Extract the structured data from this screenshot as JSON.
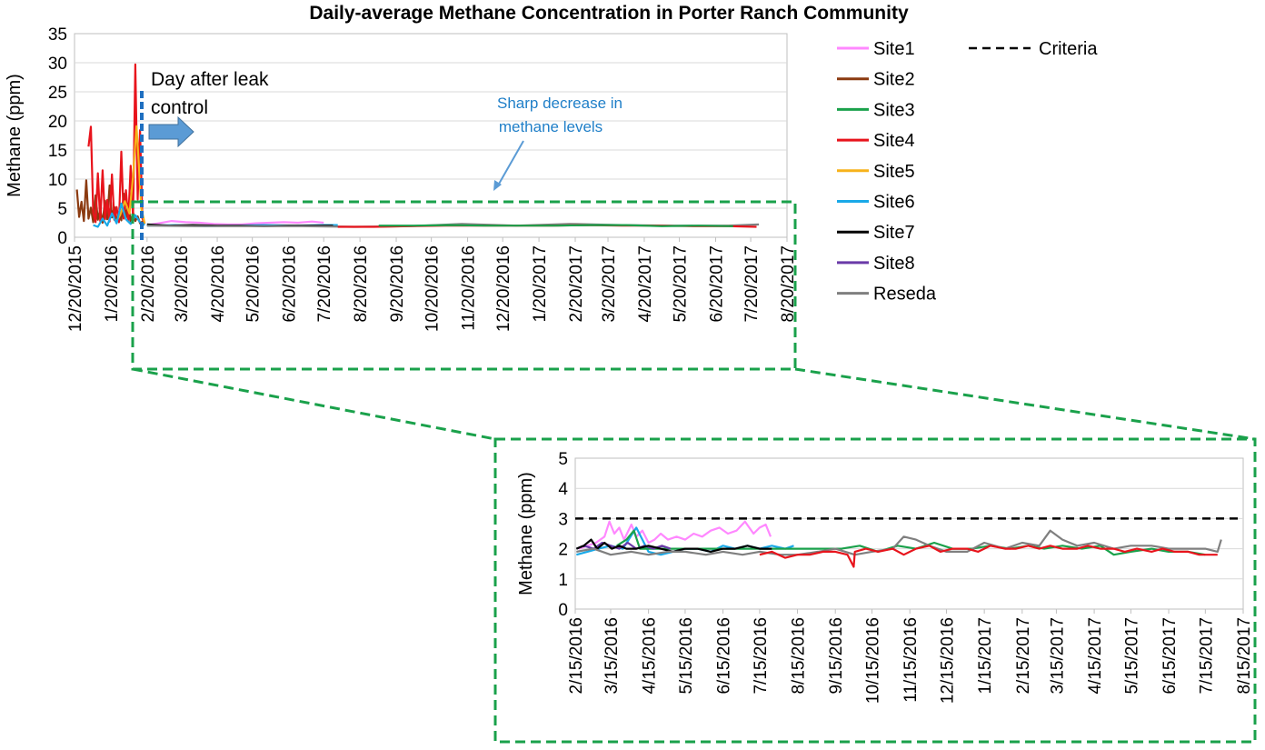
{
  "colors": {
    "Site1": "#ff88ff",
    "Site2": "#8b3a10",
    "Site3": "#1aa14b",
    "Site4": "#e8141c",
    "Site5": "#f7b21a",
    "Site6": "#19a9e8",
    "Site7": "#000000",
    "Site8": "#6a3aa8",
    "Reseda": "#7f7f7f",
    "Criteria": "#000000",
    "zoom_box": "#1aa14b",
    "leak_marker": "#1f6fc0",
    "arrow": "#5b9bd5"
  },
  "annotations": {
    "day_after_line1": "Day after leak",
    "day_after_line2": "control",
    "sharp_line1": "Sharp decrease in",
    "sharp_line2": "methane levels"
  },
  "chart_data": [
    {
      "type": "line",
      "title": "Daily-average Methane Concentration in Porter Ranch Community",
      "ylabel": "Methane (ppm)",
      "xlabel": "",
      "ylim": [
        0,
        35
      ],
      "yticks": [
        "0",
        "5",
        "10",
        "15",
        "20",
        "25",
        "30",
        "35"
      ],
      "xlim": [
        "2015-12-20",
        "2017-08-20"
      ],
      "xticks": [
        "12/20/2015",
        "1/20/2016",
        "2/20/2016",
        "3/20/2016",
        "4/20/2016",
        "5/20/2016",
        "6/20/2016",
        "7/20/2016",
        "8/20/2016",
        "9/20/2016",
        "10/20/2016",
        "11/20/2016",
        "12/20/2016",
        "1/20/2017",
        "2/20/2017",
        "3/20/2017",
        "4/20/2017",
        "5/20/2017",
        "6/20/2017",
        "7/20/2017",
        "8/20/2017"
      ],
      "grid": "horizontal",
      "leak_control_date": "2016-02-19",
      "series": [
        {
          "name": "Site2",
          "x": [
            "2015-12-22",
            "2015-12-24",
            "2015-12-26",
            "2015-12-28",
            "2015-12-30",
            "2016-01-01",
            "2016-01-03",
            "2016-01-05",
            "2016-01-07",
            "2016-01-09",
            "2016-01-11",
            "2016-01-13",
            "2016-01-15",
            "2016-01-17",
            "2016-01-19",
            "2016-01-21",
            "2016-01-23",
            "2016-01-25",
            "2016-01-27",
            "2016-01-29",
            "2016-01-31",
            "2016-02-02",
            "2016-02-04",
            "2016-02-06",
            "2016-02-08",
            "2016-02-10",
            "2016-02-12",
            "2016-02-14",
            "2016-02-16",
            "2016-02-18"
          ],
          "y": [
            8.2,
            3.5,
            6.1,
            2.8,
            9.8,
            3.2,
            5.1,
            2.6,
            7.2,
            3.0,
            4.8,
            2.5,
            6.3,
            3.1,
            8.9,
            3.4,
            5.2,
            2.7,
            4.1,
            2.9,
            7.5,
            3.3,
            5.8,
            2.6,
            4.3,
            2.8,
            3.6,
            2.4,
            2.7,
            2.3
          ]
        },
        {
          "name": "Site4",
          "x": [
            "2016-01-01",
            "2016-01-03",
            "2016-01-05",
            "2016-01-07",
            "2016-01-09",
            "2016-01-11",
            "2016-01-13",
            "2016-01-15",
            "2016-01-17",
            "2016-01-19",
            "2016-01-21",
            "2016-01-23",
            "2016-01-25",
            "2016-01-27",
            "2016-01-29",
            "2016-01-31",
            "2016-02-02",
            "2016-02-04",
            "2016-02-06",
            "2016-02-08",
            "2016-02-10",
            "2016-02-12",
            "2016-02-14",
            "2016-02-16",
            "2016-02-18"
          ],
          "y": [
            15.6,
            19.0,
            4.2,
            2.6,
            11.0,
            2.8,
            11.5,
            3.1,
            6.4,
            2.7,
            10.8,
            3.0,
            5.2,
            2.6,
            14.7,
            3.2,
            8.1,
            2.9,
            12.3,
            3.3,
            29.7,
            6.5,
            18.4,
            3.2,
            2.5
          ]
        },
        {
          "name": "Site5",
          "x": [
            "2016-01-24",
            "2016-01-28",
            "2016-02-01",
            "2016-02-05",
            "2016-02-08",
            "2016-02-11",
            "2016-02-13",
            "2016-02-15",
            "2016-02-18"
          ],
          "y": [
            2.6,
            3.8,
            6.2,
            4.1,
            10.5,
            19.1,
            12.4,
            5.0,
            2.4
          ]
        },
        {
          "name": "Site6",
          "x": [
            "2016-01-05",
            "2016-01-09",
            "2016-01-13",
            "2016-01-17",
            "2016-01-21",
            "2016-01-25",
            "2016-01-29",
            "2016-02-02",
            "2016-02-06",
            "2016-02-10",
            "2016-02-14",
            "2016-02-18"
          ],
          "y": [
            2.1,
            1.8,
            3.2,
            2.0,
            4.1,
            2.4,
            5.8,
            3.1,
            2.3,
            3.8,
            2.6,
            2.1
          ]
        },
        {
          "name": "Site1",
          "x": [
            "2016-02-20",
            "2016-03-01",
            "2016-03-12",
            "2016-03-24",
            "2016-04-05",
            "2016-04-17",
            "2016-04-29",
            "2016-05-11",
            "2016-05-23",
            "2016-06-04",
            "2016-06-16",
            "2016-06-28",
            "2016-07-10",
            "2016-07-20"
          ],
          "y": [
            2.1,
            2.4,
            2.8,
            2.6,
            2.5,
            2.3,
            2.2,
            2.2,
            2.4,
            2.5,
            2.6,
            2.5,
            2.7,
            2.5
          ]
        },
        {
          "name": "Site6",
          "x": [
            "2016-02-20",
            "2016-03-15",
            "2016-04-10",
            "2016-05-05",
            "2016-05-30",
            "2016-06-25",
            "2016-07-20",
            "2016-08-01"
          ],
          "y": [
            2.0,
            2.1,
            1.9,
            2.0,
            2.1,
            2.0,
            2.1,
            2.1
          ]
        },
        {
          "name": "Site7",
          "x": [
            "2016-02-20",
            "2016-03-10",
            "2016-03-30",
            "2016-04-20",
            "2016-05-10",
            "2016-05-30",
            "2016-06-20",
            "2016-07-10",
            "2016-07-28"
          ],
          "y": [
            2.2,
            2.0,
            2.1,
            2.0,
            2.0,
            1.9,
            2.0,
            2.0,
            2.0
          ]
        },
        {
          "name": "Reseda",
          "x": [
            "2016-02-20",
            "2016-04-01",
            "2016-05-15",
            "2016-07-01",
            "2016-08-15",
            "2016-10-01",
            "2016-11-15",
            "2017-01-01",
            "2017-02-15",
            "2017-04-01",
            "2017-05-15",
            "2017-07-01",
            "2017-07-27"
          ],
          "y": [
            2.0,
            1.9,
            1.9,
            1.9,
            1.8,
            1.9,
            2.3,
            2.0,
            2.3,
            2.1,
            2.0,
            2.0,
            2.2
          ]
        },
        {
          "name": "Site4",
          "x": [
            "2016-08-01",
            "2016-09-01",
            "2016-10-01",
            "2016-11-01",
            "2016-12-01",
            "2017-01-01",
            "2017-02-01",
            "2017-03-01",
            "2017-04-01",
            "2017-05-01",
            "2017-06-01",
            "2017-07-01",
            "2017-07-25"
          ],
          "y": [
            1.8,
            1.8,
            1.9,
            2.0,
            2.0,
            2.0,
            2.0,
            2.1,
            2.0,
            2.0,
            1.9,
            1.9,
            1.8
          ]
        },
        {
          "name": "Site3",
          "x": [
            "2016-09-05",
            "2016-10-05",
            "2016-11-05",
            "2016-12-05",
            "2017-01-05",
            "2017-02-05",
            "2017-03-05",
            "2017-04-05",
            "2017-05-05",
            "2017-06-05",
            "2017-07-05"
          ],
          "y": [
            2.0,
            2.0,
            2.1,
            2.0,
            2.0,
            2.0,
            2.1,
            2.1,
            1.9,
            2.0,
            1.9
          ]
        }
      ]
    },
    {
      "type": "line",
      "title": "",
      "ylabel": "Methane (ppm)",
      "xlabel": "",
      "ylim": [
        0,
        5
      ],
      "yticks": [
        "0",
        "1",
        "2",
        "3",
        "4",
        "5"
      ],
      "xlim": [
        "2016-02-15",
        "2017-08-15"
      ],
      "xticks": [
        "2/15/2016",
        "3/15/2016",
        "4/15/2016",
        "5/15/2016",
        "6/15/2016",
        "7/15/2016",
        "8/15/2016",
        "9/15/2016",
        "10/15/2016",
        "11/15/2016",
        "12/15/2016",
        "1/15/2017",
        "2/15/2017",
        "3/15/2017",
        "4/15/2017",
        "5/15/2017",
        "6/15/2017",
        "7/15/2017",
        "8/15/2017"
      ],
      "grid": "horizontal",
      "criteria": 3,
      "series": [
        {
          "name": "Site1",
          "x": [
            "2016-02-18",
            "2016-02-25",
            "2016-03-03",
            "2016-03-10",
            "2016-03-14",
            "2016-03-18",
            "2016-03-22",
            "2016-03-26",
            "2016-04-01",
            "2016-04-05",
            "2016-04-10",
            "2016-04-15",
            "2016-04-20",
            "2016-04-25",
            "2016-05-01",
            "2016-05-08",
            "2016-05-15",
            "2016-05-22",
            "2016-05-29",
            "2016-06-05",
            "2016-06-12",
            "2016-06-19",
            "2016-06-26",
            "2016-07-03",
            "2016-07-10",
            "2016-07-15",
            "2016-07-20",
            "2016-07-24"
          ],
          "y": [
            2.0,
            2.1,
            2.2,
            2.4,
            2.9,
            2.5,
            2.7,
            2.3,
            2.8,
            2.4,
            2.6,
            2.2,
            2.3,
            2.5,
            2.3,
            2.4,
            2.3,
            2.5,
            2.4,
            2.6,
            2.7,
            2.5,
            2.6,
            2.9,
            2.5,
            2.7,
            2.8,
            2.4
          ]
        },
        {
          "name": "Site6",
          "x": [
            "2016-02-16",
            "2016-02-25",
            "2016-03-05",
            "2016-03-15",
            "2016-03-25",
            "2016-04-05",
            "2016-04-15",
            "2016-04-25",
            "2016-05-05",
            "2016-05-15",
            "2016-05-25",
            "2016-06-05",
            "2016-06-15",
            "2016-06-25",
            "2016-07-05",
            "2016-07-15",
            "2016-07-25",
            "2016-08-05",
            "2016-08-12"
          ],
          "y": [
            1.8,
            1.9,
            2.0,
            2.1,
            2.0,
            2.7,
            1.9,
            1.8,
            1.9,
            2.0,
            2.0,
            1.9,
            2.1,
            2.0,
            2.1,
            2.0,
            2.1,
            2.0,
            2.1
          ]
        },
        {
          "name": "Site3",
          "x": [
            "2016-03-20",
            "2016-03-28",
            "2016-04-03",
            "2016-04-08",
            "2016-09-05",
            "2016-09-20",
            "2016-10-05",
            "2016-10-20",
            "2016-11-05",
            "2016-11-20",
            "2016-12-05",
            "2016-12-20",
            "2017-01-05",
            "2017-01-20",
            "2017-02-05",
            "2017-02-20",
            "2017-03-05",
            "2017-03-20",
            "2017-04-05",
            "2017-04-20",
            "2017-05-01",
            "2017-05-15",
            "2017-06-01",
            "2017-06-15",
            "2017-07-01",
            "2017-07-15"
          ],
          "y": [
            2.1,
            2.3,
            2.6,
            2.0,
            2.0,
            2.0,
            2.1,
            1.9,
            2.1,
            2.0,
            2.2,
            2.0,
            2.0,
            2.1,
            2.0,
            2.1,
            2.0,
            2.1,
            2.0,
            2.1,
            1.8,
            1.9,
            2.0,
            1.9,
            1.9,
            1.8
          ]
        },
        {
          "name": "Site8",
          "x": [
            "2016-02-16",
            "2016-02-22",
            "2016-03-01",
            "2016-03-08",
            "2016-03-15",
            "2016-03-22",
            "2016-03-29",
            "2016-04-05",
            "2016-04-12",
            "2016-04-19",
            "2016-04-26",
            "2016-05-03"
          ],
          "y": [
            2.0,
            2.1,
            2.0,
            2.2,
            2.1,
            2.0,
            2.2,
            2.0,
            2.1,
            2.0,
            2.1,
            2.0
          ]
        },
        {
          "name": "Site7",
          "x": [
            "2016-02-16",
            "2016-02-22",
            "2016-02-28",
            "2016-03-04",
            "2016-03-10",
            "2016-03-16",
            "2016-03-22",
            "2016-03-28",
            "2016-04-05",
            "2016-04-15",
            "2016-04-25",
            "2016-05-05",
            "2016-05-15",
            "2016-05-25",
            "2016-06-05",
            "2016-06-15",
            "2016-06-25",
            "2016-07-05",
            "2016-07-15",
            "2016-07-25"
          ],
          "y": [
            2.0,
            2.1,
            2.3,
            2.0,
            2.2,
            2.0,
            2.1,
            2.0,
            2.0,
            2.1,
            2.0,
            1.9,
            2.0,
            2.0,
            1.9,
            2.0,
            2.0,
            2.1,
            2.0,
            2.0
          ]
        },
        {
          "name": "Reseda",
          "x": [
            "2016-02-16",
            "2016-03-01",
            "2016-03-15",
            "2016-04-01",
            "2016-04-15",
            "2016-05-01",
            "2016-05-15",
            "2016-06-01",
            "2016-06-15",
            "2016-07-01",
            "2016-07-15",
            "2016-08-01",
            "2016-08-15",
            "2016-09-01",
            "2016-09-15",
            "2016-10-01",
            "2016-10-15",
            "2016-11-01",
            "2016-11-10",
            "2016-11-20",
            "2016-12-01",
            "2016-12-15",
            "2017-01-01",
            "2017-01-15",
            "2017-02-01",
            "2017-02-15",
            "2017-03-01",
            "2017-03-10",
            "2017-03-20",
            "2017-04-01",
            "2017-04-15",
            "2017-05-01",
            "2017-05-15",
            "2017-06-01",
            "2017-06-15",
            "2017-07-01",
            "2017-07-15",
            "2017-07-25",
            "2017-07-28"
          ],
          "y": [
            1.9,
            2.0,
            1.8,
            1.9,
            1.8,
            1.9,
            1.9,
            1.8,
            1.9,
            1.8,
            1.9,
            1.8,
            1.8,
            1.9,
            2.0,
            1.8,
            1.9,
            2.0,
            2.4,
            2.3,
            2.1,
            1.9,
            1.9,
            2.2,
            2.0,
            2.2,
            2.1,
            2.6,
            2.3,
            2.1,
            2.2,
            2.0,
            2.1,
            2.1,
            2.0,
            2.0,
            2.0,
            1.9,
            2.3
          ]
        },
        {
          "name": "Site4",
          "x": [
            "2016-07-15",
            "2016-07-25",
            "2016-08-05",
            "2016-08-15",
            "2016-08-25",
            "2016-09-05",
            "2016-09-15",
            "2016-09-25",
            "2016-09-30",
            "2016-10-01",
            "2016-10-10",
            "2016-10-20",
            "2016-11-01",
            "2016-11-10",
            "2016-11-20",
            "2016-12-01",
            "2016-12-10",
            "2016-12-20",
            "2017-01-01",
            "2017-01-10",
            "2017-01-20",
            "2017-02-01",
            "2017-02-10",
            "2017-02-20",
            "2017-03-01",
            "2017-03-10",
            "2017-03-20",
            "2017-04-01",
            "2017-04-10",
            "2017-04-20",
            "2017-05-01",
            "2017-05-10",
            "2017-05-20",
            "2017-06-01",
            "2017-06-10",
            "2017-06-20",
            "2017-07-01",
            "2017-07-10",
            "2017-07-25"
          ],
          "y": [
            1.8,
            1.9,
            1.7,
            1.8,
            1.8,
            1.9,
            1.9,
            1.8,
            1.4,
            1.9,
            2.0,
            1.9,
            2.0,
            1.8,
            2.0,
            2.1,
            1.9,
            2.0,
            2.0,
            1.9,
            2.1,
            2.0,
            2.0,
            2.1,
            2.0,
            2.1,
            2.0,
            2.0,
            2.1,
            2.0,
            2.0,
            1.9,
            2.0,
            1.9,
            2.0,
            1.9,
            1.9,
            1.8,
            1.8
          ]
        }
      ]
    }
  ],
  "legend": {
    "items": [
      {
        "label": "Site1",
        "color": "#ff88ff"
      },
      {
        "label": "Site2",
        "color": "#8b3a10"
      },
      {
        "label": "Site3",
        "color": "#1aa14b"
      },
      {
        "label": "Site4",
        "color": "#e8141c"
      },
      {
        "label": "Site5",
        "color": "#f7b21a"
      },
      {
        "label": "Site6",
        "color": "#19a9e8"
      },
      {
        "label": "Site7",
        "color": "#000000"
      },
      {
        "label": "Site8",
        "color": "#6a3aa8"
      },
      {
        "label": "Reseda",
        "color": "#7f7f7f"
      }
    ],
    "criteria_label": "Criteria"
  }
}
